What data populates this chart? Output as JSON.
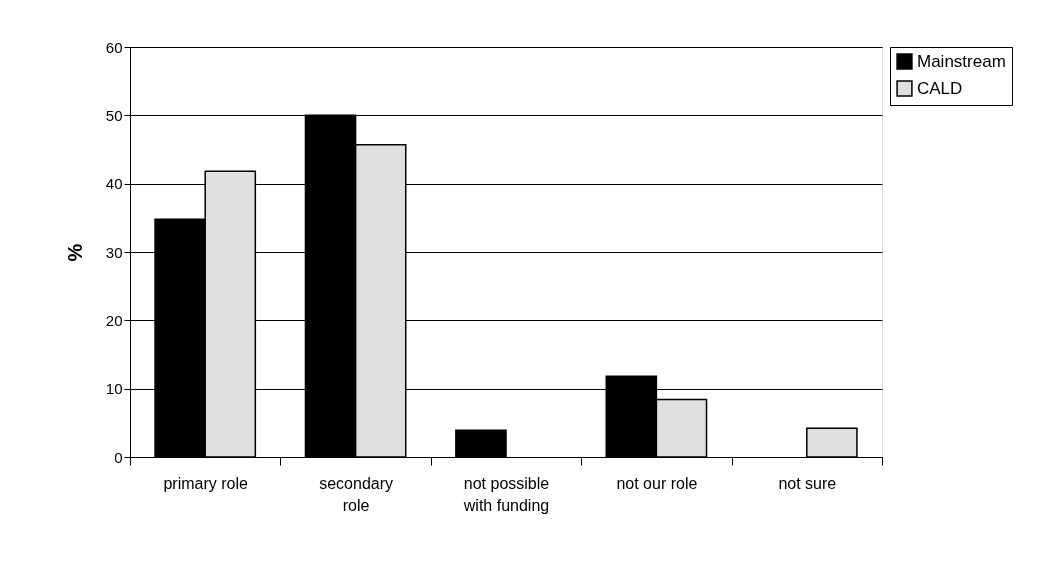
{
  "chart_data": {
    "type": "bar",
    "ylabel": "%",
    "categories": [
      "primary role",
      "secondary\nrole",
      "not possible\nwith funding",
      "not our role",
      "not sure"
    ],
    "series": [
      {
        "name": "Mainstream",
        "color": "#000000",
        "values": [
          34.8,
          50,
          3.9,
          11.8,
          0
        ]
      },
      {
        "name": "CALD",
        "color": "#e0e0e0",
        "values": [
          41.8,
          45.7,
          0,
          8.4,
          4.2
        ]
      }
    ],
    "ylim": [
      0,
      60
    ],
    "yticks": [
      0,
      10,
      20,
      30,
      40,
      50,
      60
    ],
    "grid": "y",
    "legend": "right"
  }
}
